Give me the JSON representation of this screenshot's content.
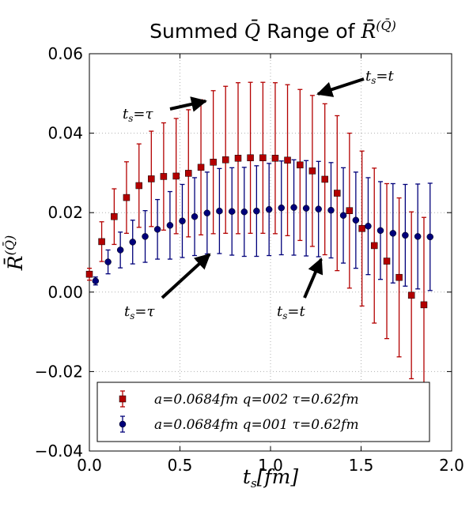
{
  "chart_data": {
    "type": "scatter",
    "title": "Summed Q̄ Range of R̄(Q̄)",
    "xlabel": "ts[fm]",
    "ylabel": "R̄(Q̄)",
    "xlim": [
      0.0,
      2.0
    ],
    "ylim": [
      -0.04,
      0.06
    ],
    "xticks": [
      "0.0",
      "0.5",
      "1.0",
      "1.5",
      "2.0"
    ],
    "yticks": [
      "−0.04",
      "−0.02",
      "0.00",
      "0.02",
      "0.04",
      "0.06"
    ],
    "x_tick_values": [
      0.0,
      0.5,
      1.0,
      1.5,
      2.0
    ],
    "y_tick_values": [
      -0.04,
      -0.02,
      0.0,
      0.02,
      0.04,
      0.06
    ],
    "grid": true,
    "legend_position": "bottom",
    "series": [
      {
        "name": "a=0.0684fm   q=002 τ=0.62fm",
        "color": "#b30000",
        "marker": "square",
        "x": [
          0.0,
          0.068,
          0.137,
          0.205,
          0.274,
          0.342,
          0.41,
          0.479,
          0.547,
          0.616,
          0.684,
          0.752,
          0.821,
          0.889,
          0.958,
          1.026,
          1.094,
          1.163,
          1.231,
          1.3,
          1.368,
          1.436,
          1.505,
          1.573,
          1.642,
          1.71,
          1.778,
          1.847
        ],
        "y": [
          0.0045,
          0.0127,
          0.019,
          0.0238,
          0.0268,
          0.0285,
          0.0291,
          0.0292,
          0.0299,
          0.0314,
          0.0327,
          0.0333,
          0.0337,
          0.0338,
          0.0338,
          0.0337,
          0.0332,
          0.032,
          0.0305,
          0.0284,
          0.0249,
          0.0205,
          0.016,
          0.0117,
          0.0078,
          0.0037,
          -0.0008,
          -0.0032
        ],
        "err": [
          0.0015,
          0.005,
          0.007,
          0.009,
          0.0105,
          0.012,
          0.0135,
          0.0145,
          0.016,
          0.017,
          0.018,
          0.0185,
          0.019,
          0.019,
          0.019,
          0.019,
          0.019,
          0.019,
          0.019,
          0.019,
          0.0195,
          0.0195,
          0.0195,
          0.0195,
          0.0195,
          0.02,
          0.021,
          0.022
        ]
      },
      {
        "name": "a=0.0684fm   q=001 τ=0.62fm",
        "color": "#00007a",
        "marker": "circle",
        "x": [
          0.034,
          0.103,
          0.171,
          0.239,
          0.308,
          0.376,
          0.445,
          0.513,
          0.581,
          0.65,
          0.718,
          0.787,
          0.855,
          0.923,
          0.992,
          1.06,
          1.129,
          1.197,
          1.265,
          1.334,
          1.402,
          1.471,
          1.539,
          1.607,
          1.676,
          1.744,
          1.813,
          1.881
        ],
        "y": [
          0.0028,
          0.0076,
          0.0106,
          0.0126,
          0.014,
          0.0158,
          0.0168,
          0.0179,
          0.019,
          0.0199,
          0.0204,
          0.0203,
          0.0202,
          0.0204,
          0.0208,
          0.0212,
          0.0213,
          0.0211,
          0.0209,
          0.0206,
          0.0193,
          0.0181,
          0.0166,
          0.0155,
          0.0148,
          0.0143,
          0.014,
          0.0139
        ],
        "err": [
          0.001,
          0.003,
          0.0045,
          0.0055,
          0.0065,
          0.0075,
          0.0085,
          0.0092,
          0.0098,
          0.0103,
          0.0107,
          0.011,
          0.0112,
          0.0114,
          0.0116,
          0.0118,
          0.012,
          0.012,
          0.012,
          0.012,
          0.012,
          0.0121,
          0.0122,
          0.0123,
          0.0125,
          0.0128,
          0.0132,
          0.0135
        ]
      }
    ],
    "annotations": [
      {
        "text": "ts=τ",
        "xy": [
          0.616,
          0.0475
        ],
        "series": 0
      },
      {
        "text": "ts=t",
        "xy": [
          1.231,
          0.0495
        ],
        "series": 0
      },
      {
        "text": "ts=τ",
        "xy": [
          0.65,
          0.0096
        ],
        "series": 1
      },
      {
        "text": "ts=t",
        "xy": [
          1.265,
          0.0089
        ],
        "series": 1
      }
    ]
  }
}
